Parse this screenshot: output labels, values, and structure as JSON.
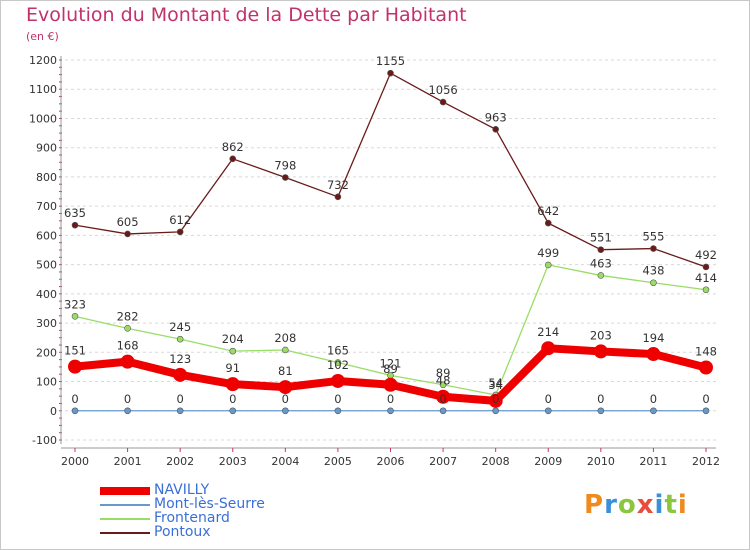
{
  "title": "Evolution du Montant de la Dette par Habitant",
  "subtitle": "(en €)",
  "logo": "Proxiti",
  "colors": {
    "title": "#c0336a",
    "legend_text": "#3a6fd8",
    "axis_text": "#333333"
  },
  "chart_data": {
    "type": "line",
    "title": "Evolution du Montant de la Dette par Habitant",
    "subtitle": "(en €)",
    "xlabel": "",
    "ylabel": "",
    "x": [
      "2000",
      "2001",
      "2002",
      "2003",
      "2004",
      "2005",
      "2006",
      "2007",
      "2008",
      "2009",
      "2010",
      "2011",
      "2012"
    ],
    "ylim": [
      -100,
      1200
    ],
    "yticks": [
      -100,
      0,
      100,
      200,
      300,
      400,
      500,
      600,
      700,
      800,
      900,
      1000,
      1100,
      1200
    ],
    "grid": "horizontal dashed",
    "legend": "bottom",
    "series": [
      {
        "name": "NAVILLY",
        "color": "#ee0000",
        "width": "thick",
        "values": [
          151,
          168,
          123,
          91,
          81,
          102,
          89,
          48,
          34,
          214,
          203,
          194,
          148
        ]
      },
      {
        "name": "Mont-lès-Seurre",
        "color": "#6699cc",
        "width": "thin",
        "values": [
          0,
          0,
          0,
          0,
          0,
          0,
          0,
          0,
          0,
          0,
          0,
          0,
          0
        ]
      },
      {
        "name": "Frontenard",
        "color": "#99dd66",
        "width": "thin",
        "values": [
          323,
          282,
          245,
          204,
          208,
          165,
          121,
          89,
          54,
          499,
          463,
          438,
          414
        ]
      },
      {
        "name": "Pontoux",
        "color": "#6b1a1a",
        "width": "thin",
        "values": [
          635,
          605,
          612,
          862,
          798,
          732,
          1155,
          1056,
          963,
          642,
          551,
          555,
          492
        ]
      }
    ]
  }
}
